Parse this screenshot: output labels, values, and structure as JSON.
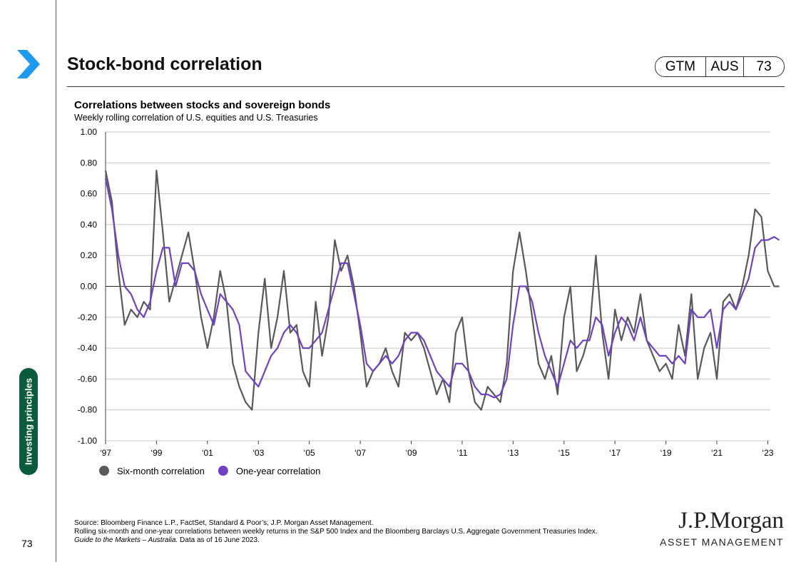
{
  "header": {
    "title": "Stock-bond correlation",
    "badge": [
      "GTM",
      "AUS",
      "73"
    ]
  },
  "sidebar": {
    "section": "Investing principles",
    "page": "73"
  },
  "chart_data": {
    "type": "line",
    "title": "Correlations between stocks and sovereign bonds",
    "subtitle": "Weekly rolling correlation of U.S. equities and U.S. Treasuries",
    "x": [
      1997,
      1997.25,
      1997.5,
      1997.75,
      1998,
      1998.25,
      1998.5,
      1998.75,
      1999,
      1999.25,
      1999.5,
      1999.75,
      2000,
      2000.25,
      2000.5,
      2000.75,
      2001,
      2001.25,
      2001.5,
      2001.75,
      2002,
      2002.25,
      2002.5,
      2002.75,
      2003,
      2003.25,
      2003.5,
      2003.75,
      2004,
      2004.25,
      2004.5,
      2004.75,
      2005,
      2005.25,
      2005.5,
      2005.75,
      2006,
      2006.25,
      2006.5,
      2006.75,
      2007,
      2007.25,
      2007.5,
      2007.75,
      2008,
      2008.25,
      2008.5,
      2008.75,
      2009,
      2009.25,
      2009.5,
      2009.75,
      2010,
      2010.25,
      2010.5,
      2010.75,
      2011,
      2011.25,
      2011.5,
      2011.75,
      2012,
      2012.25,
      2012.5,
      2012.75,
      2013,
      2013.25,
      2013.5,
      2013.75,
      2014,
      2014.25,
      2014.5,
      2014.75,
      2015,
      2015.25,
      2015.5,
      2015.75,
      2016,
      2016.25,
      2016.5,
      2016.75,
      2017,
      2017.25,
      2017.5,
      2017.75,
      2018,
      2018.25,
      2018.5,
      2018.75,
      2019,
      2019.25,
      2019.5,
      2019.75,
      2020,
      2020.25,
      2020.5,
      2020.75,
      2021,
      2021.25,
      2021.5,
      2021.75,
      2022,
      2022.25,
      2022.5,
      2022.75,
      2023,
      2023.25,
      2023.45
    ],
    "series": [
      {
        "name": "Six-month correlation",
        "color": "#58595b",
        "values": [
          0.75,
          0.55,
          0.1,
          -0.25,
          -0.15,
          -0.2,
          -0.1,
          -0.15,
          0.75,
          0.35,
          -0.1,
          0.05,
          0.2,
          0.35,
          0.1,
          -0.2,
          -0.4,
          -0.2,
          0.1,
          -0.1,
          -0.5,
          -0.65,
          -0.75,
          -0.8,
          -0.3,
          0.05,
          -0.4,
          -0.2,
          0.1,
          -0.3,
          -0.25,
          -0.55,
          -0.65,
          -0.1,
          -0.45,
          -0.2,
          0.3,
          0.1,
          0.2,
          0.0,
          -0.3,
          -0.65,
          -0.55,
          -0.5,
          -0.4,
          -0.55,
          -0.65,
          -0.3,
          -0.35,
          -0.3,
          -0.4,
          -0.55,
          -0.7,
          -0.6,
          -0.75,
          -0.3,
          -0.2,
          -0.55,
          -0.75,
          -0.8,
          -0.65,
          -0.7,
          -0.75,
          -0.5,
          0.1,
          0.35,
          0.1,
          -0.2,
          -0.5,
          -0.6,
          -0.45,
          -0.7,
          -0.2,
          0.0,
          -0.55,
          -0.45,
          -0.3,
          0.2,
          -0.3,
          -0.6,
          -0.15,
          -0.35,
          -0.2,
          -0.3,
          -0.05,
          -0.35,
          -0.45,
          -0.55,
          -0.5,
          -0.6,
          -0.25,
          -0.45,
          -0.05,
          -0.6,
          -0.4,
          -0.3,
          -0.6,
          -0.1,
          -0.05,
          -0.15,
          0.0,
          0.2,
          0.5,
          0.45,
          0.1,
          0.0,
          0.0
        ]
      },
      {
        "name": "One-year correlation",
        "color": "#6f42c1",
        "values": [
          0.7,
          0.5,
          0.2,
          0.0,
          -0.05,
          -0.15,
          -0.2,
          -0.1,
          0.1,
          0.25,
          0.25,
          0.0,
          0.15,
          0.15,
          0.1,
          -0.05,
          -0.15,
          -0.25,
          -0.05,
          -0.1,
          -0.15,
          -0.25,
          -0.55,
          -0.6,
          -0.65,
          -0.55,
          -0.45,
          -0.4,
          -0.3,
          -0.25,
          -0.3,
          -0.4,
          -0.4,
          -0.35,
          -0.3,
          -0.15,
          0.0,
          0.15,
          0.15,
          -0.05,
          -0.25,
          -0.5,
          -0.55,
          -0.5,
          -0.45,
          -0.5,
          -0.45,
          -0.35,
          -0.3,
          -0.3,
          -0.35,
          -0.45,
          -0.55,
          -0.6,
          -0.65,
          -0.5,
          -0.5,
          -0.55,
          -0.65,
          -0.7,
          -0.7,
          -0.72,
          -0.7,
          -0.6,
          -0.25,
          0.0,
          0.0,
          -0.1,
          -0.3,
          -0.45,
          -0.55,
          -0.65,
          -0.5,
          -0.35,
          -0.4,
          -0.35,
          -0.35,
          -0.2,
          -0.25,
          -0.45,
          -0.3,
          -0.2,
          -0.25,
          -0.35,
          -0.2,
          -0.35,
          -0.4,
          -0.45,
          -0.45,
          -0.5,
          -0.45,
          -0.5,
          -0.15,
          -0.2,
          -0.2,
          -0.15,
          -0.4,
          -0.15,
          -0.1,
          -0.15,
          -0.05,
          0.05,
          0.25,
          0.3,
          0.3,
          0.32,
          0.3
        ]
      }
    ],
    "xlim": [
      1997,
      2023.1
    ],
    "xticks": [
      {
        "value": 1997,
        "label": "‘97"
      },
      {
        "value": 1999,
        "label": "‘99"
      },
      {
        "value": 2001,
        "label": "‘01"
      },
      {
        "value": 2003,
        "label": "‘03"
      },
      {
        "value": 2005,
        "label": "‘05"
      },
      {
        "value": 2007,
        "label": "‘07"
      },
      {
        "value": 2009,
        "label": "‘09"
      },
      {
        "value": 2011,
        "label": "‘11"
      },
      {
        "value": 2013,
        "label": "‘13"
      },
      {
        "value": 2015,
        "label": "‘15"
      },
      {
        "value": 2017,
        "label": "‘17"
      },
      {
        "value": 2019,
        "label": "‘19"
      },
      {
        "value": 2021,
        "label": "‘21"
      },
      {
        "value": 2023,
        "label": "‘23"
      }
    ],
    "ylim": [
      -1,
      1
    ],
    "yticks": [
      {
        "value": -1,
        "label": "-1.00"
      },
      {
        "value": -0.8,
        "label": "-0.80"
      },
      {
        "value": -0.6,
        "label": "-0.60"
      },
      {
        "value": -0.4,
        "label": "-0.40"
      },
      {
        "value": -0.2,
        "label": "-0.20"
      },
      {
        "value": 0,
        "label": "0.00"
      },
      {
        "value": 0.2,
        "label": "0.20"
      },
      {
        "value": 0.4,
        "label": "0.40"
      },
      {
        "value": 0.6,
        "label": "0.60"
      },
      {
        "value": 0.8,
        "label": "0.80"
      },
      {
        "value": 1,
        "label": "1.00"
      }
    ],
    "grid": true,
    "legend": "bottom-left"
  },
  "footnotes": {
    "source": "Source: Bloomberg Finance L.P., FactSet, Standard & Poor’s, J.P. Morgan Asset Management.",
    "note": "Rolling six-month and one-year correlations between weekly returns in the S&P 500 Index and the Bloomberg Barclays U.S. Aggregate Government Treasuries Index.",
    "guide": "Guide to the Markets – Australia.",
    "date": " Data as of 16 June 2023."
  },
  "logo": {
    "name": "J.P.Morgan",
    "tagline": "ASSET MANAGEMENT"
  }
}
